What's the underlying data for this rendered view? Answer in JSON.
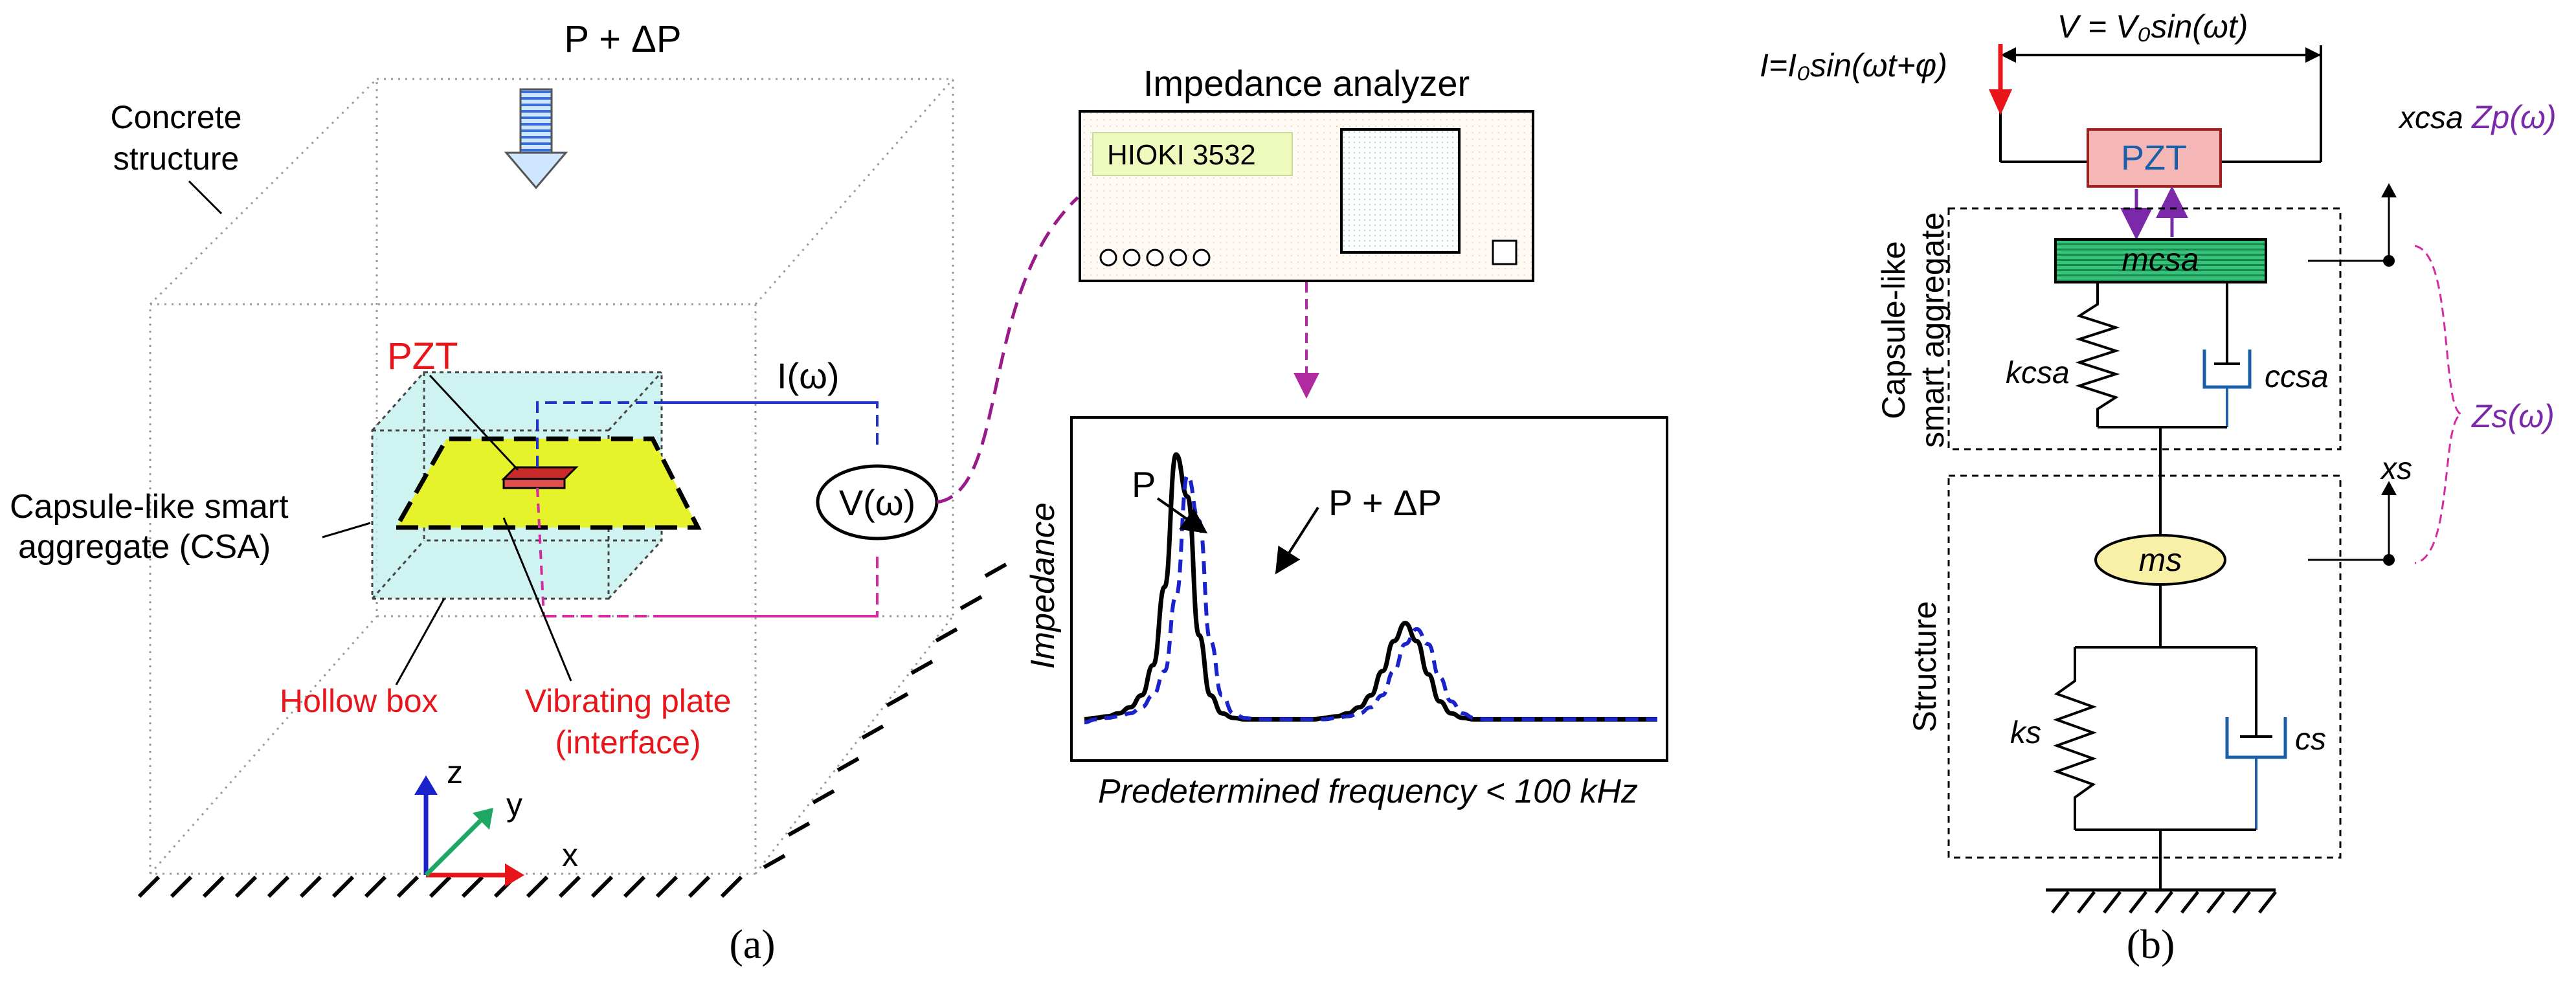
{
  "panel_a": {
    "load_label": "P + ΔP",
    "concrete_label_1": "Concrete",
    "concrete_label_2": "structure",
    "pzt_label": "PZT",
    "current_label": "I(ω)",
    "voltage_label": "V(ω)",
    "csa_label_1": "Capsule-like smart",
    "csa_label_2": "aggregate (CSA)",
    "hollow_box_label": "Hollow box",
    "plate_label_1": "Vibrating plate",
    "plate_label_2": "(interface)",
    "axis_z": "z",
    "axis_y": "y",
    "axis_x": "x",
    "analyzer_title": "Impedance analyzer",
    "analyzer_model": "HIOKI 3532",
    "chart_ylabel": "Impedance",
    "chart_xlabel": "Predetermined frequency < 100 kHz",
    "curve_p_label": "P",
    "curve_dp_label": "P + ΔP",
    "caption": "(a)"
  },
  "panel_b": {
    "current_eq": "I=I₀sin(ωt+φ)",
    "voltage_eq": "V = V₀sin(ωt)",
    "pzt_label": "PZT",
    "zp_label": "Zp(ω)",
    "zs_label": "Zs(ω)",
    "x_csa_label": "xcsa",
    "x_s_label": "xs",
    "m_csa_label": "mcsa",
    "m_s_label": "ms",
    "k_csa_label": "kcsa",
    "c_csa_label": "ccsa",
    "k_s_label": "ks",
    "c_s_label": "cs",
    "csa_side_1": "Capsule-like",
    "csa_side_2": "smart aggregate",
    "structure_side": "Structure",
    "caption": "(b)"
  },
  "colors": {
    "red": "#e8151b",
    "blue": "#1a22cc",
    "purple": "#7a2aa8",
    "magenta": "#d62aa0",
    "green_plate": "#1fa864",
    "yellow_plate": "#e6f22a",
    "cyan_box": "#bff2ee",
    "ms_fill": "#f9f0a8",
    "pzt_fill": "#f5b7b5",
    "dashpot_blue": "#1c5fa8"
  },
  "chart_data": {
    "type": "line",
    "title": "",
    "xlabel": "Predetermined frequency < 100 kHz",
    "ylabel": "Impedance",
    "x": [
      0,
      2,
      4,
      6,
      8,
      10,
      12,
      14,
      16,
      18,
      20,
      22,
      24,
      26,
      28,
      30,
      32,
      34,
      36,
      38,
      40,
      42,
      44,
      46,
      48,
      50,
      52,
      54,
      56,
      58,
      60,
      62,
      64,
      66,
      68,
      70,
      72,
      74,
      76,
      78,
      80,
      82,
      84,
      86,
      88,
      90,
      92,
      94,
      96,
      98,
      100
    ],
    "series": [
      {
        "name": "P",
        "style": "solid",
        "values": [
          0.04,
          0.045,
          0.05,
          0.06,
          0.08,
          0.12,
          0.22,
          0.48,
          0.92,
          0.78,
          0.32,
          0.12,
          0.06,
          0.045,
          0.04,
          0.04,
          0.04,
          0.04,
          0.04,
          0.04,
          0.04,
          0.045,
          0.05,
          0.06,
          0.08,
          0.12,
          0.2,
          0.3,
          0.36,
          0.3,
          0.19,
          0.1,
          0.06,
          0.045,
          0.04,
          0.04,
          0.04,
          0.04,
          0.04,
          0.04,
          0.04,
          0.04,
          0.04,
          0.04,
          0.04,
          0.04,
          0.04,
          0.04,
          0.04,
          0.04,
          0.04
        ]
      },
      {
        "name": "P + ΔP",
        "style": "dashed",
        "values": [
          0.03,
          0.04,
          0.045,
          0.05,
          0.06,
          0.08,
          0.12,
          0.2,
          0.45,
          0.85,
          0.7,
          0.3,
          0.12,
          0.06,
          0.045,
          0.04,
          0.04,
          0.04,
          0.04,
          0.04,
          0.04,
          0.04,
          0.045,
          0.05,
          0.06,
          0.08,
          0.12,
          0.2,
          0.29,
          0.34,
          0.29,
          0.18,
          0.1,
          0.06,
          0.045,
          0.04,
          0.04,
          0.04,
          0.04,
          0.04,
          0.04,
          0.04,
          0.04,
          0.04,
          0.04,
          0.04,
          0.04,
          0.04,
          0.04,
          0.04,
          0.04
        ]
      }
    ],
    "ylim": [
      0,
      1
    ],
    "xlim": [
      0,
      100
    ],
    "grid": false,
    "legend": "inline annotations"
  }
}
